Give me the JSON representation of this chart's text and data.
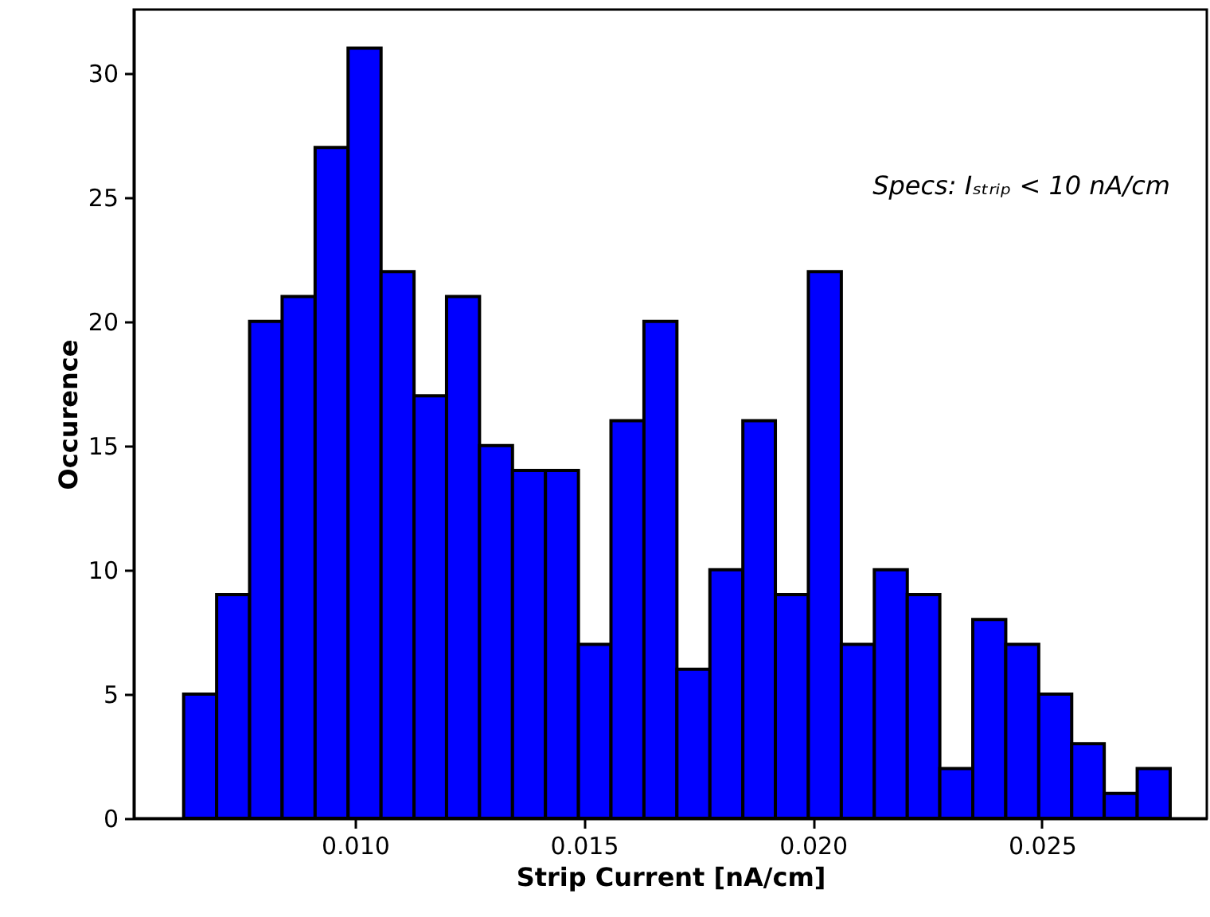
{
  "chart_data": {
    "type": "histogram",
    "xlabel": "Strip Current [nA/cm]",
    "ylabel": "Occurence",
    "bins": [
      0.00626,
      0.00698,
      0.0077,
      0.00841,
      0.00913,
      0.00985,
      0.01057,
      0.01129,
      0.012,
      0.01272,
      0.01344,
      0.01416,
      0.01488,
      0.01559,
      0.01631,
      0.01703,
      0.01775,
      0.01847,
      0.01918,
      0.0199,
      0.02062,
      0.02134,
      0.02206,
      0.02277,
      0.02349,
      0.02421,
      0.02493,
      0.02565,
      0.02636,
      0.02708,
      0.0278
    ],
    "values": [
      5,
      9,
      20,
      21,
      27,
      31,
      22,
      17,
      21,
      15,
      14,
      14,
      7,
      16,
      20,
      6,
      10,
      16,
      9,
      22,
      7,
      10,
      9,
      2,
      8,
      7,
      5,
      3,
      1,
      2
    ],
    "color": "#0000ff",
    "xlim": [
      0.00517,
      0.0286
    ],
    "xticks": [
      {
        "value": 0.01,
        "label": "0.010"
      },
      {
        "value": 0.015,
        "label": "0.015"
      },
      {
        "value": 0.02,
        "label": "0.020"
      },
      {
        "value": 0.025,
        "label": "0.025"
      }
    ],
    "ylim": [
      0,
      32.55
    ],
    "yticks": [
      0,
      5,
      10,
      15,
      20,
      25,
      30
    ],
    "annotations": [
      "Specs: Iₛₜᵣᵢₚ < 10 nA/cm"
    ],
    "grid": false
  }
}
